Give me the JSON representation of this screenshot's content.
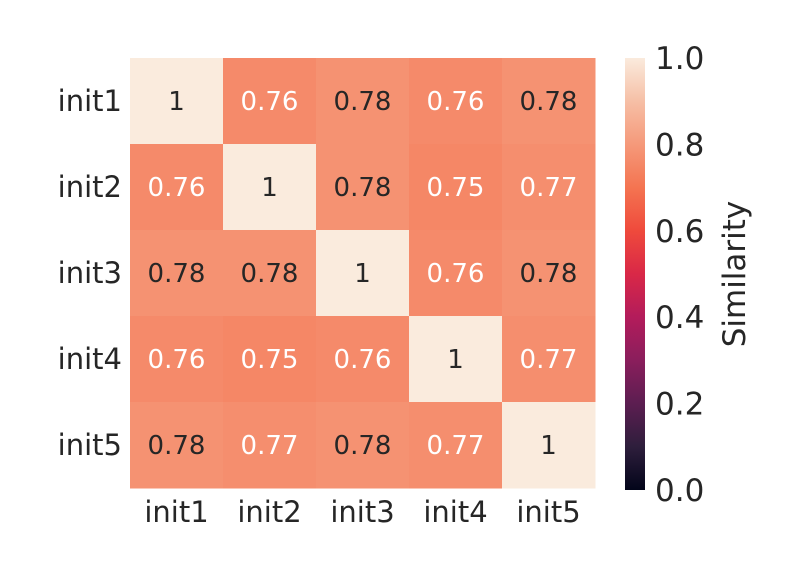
{
  "chart_data": {
    "type": "heatmap",
    "rows": [
      "init1",
      "init2",
      "init3",
      "init4",
      "init5"
    ],
    "cols": [
      "init1",
      "init2",
      "init3",
      "init4",
      "init5"
    ],
    "values": [
      [
        1,
        0.76,
        0.78,
        0.76,
        0.78
      ],
      [
        0.76,
        1,
        0.78,
        0.75,
        0.77
      ],
      [
        0.78,
        0.78,
        1,
        0.76,
        0.78
      ],
      [
        0.76,
        0.75,
        0.76,
        1,
        0.77
      ],
      [
        0.78,
        0.77,
        0.78,
        0.77,
        1
      ]
    ],
    "colorbar": {
      "label": "Similarity",
      "vmin": 0.0,
      "vmax": 1.0,
      "ticks": [
        "0.0",
        "0.2",
        "0.4",
        "0.6",
        "0.8",
        "1.0"
      ],
      "colormap": "rocket"
    },
    "annotation_text_colors": {
      "dark": "#262626",
      "light": "#ffffff"
    }
  }
}
